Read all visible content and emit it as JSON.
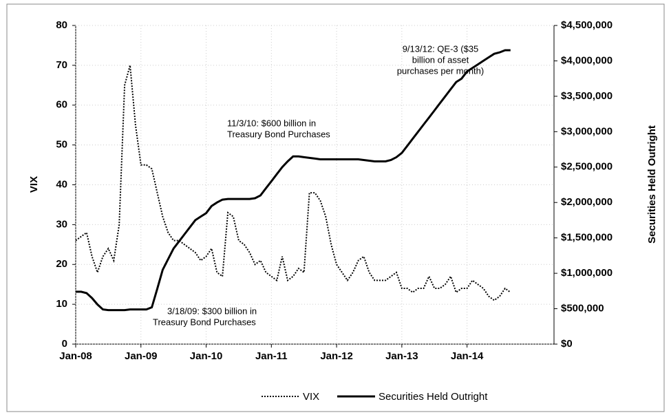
{
  "chart_data": {
    "type": "line",
    "y_label": "VIX",
    "y2_label": "Securities Held Outright",
    "categories": [
      "Jan-08",
      null,
      null,
      null,
      null,
      null,
      null,
      null,
      null,
      null,
      null,
      null,
      "Jan-09",
      null,
      null,
      null,
      null,
      null,
      null,
      null,
      null,
      null,
      null,
      null,
      "Jan-10",
      null,
      null,
      null,
      null,
      null,
      null,
      null,
      null,
      null,
      null,
      null,
      "Jan-11",
      null,
      null,
      null,
      null,
      null,
      null,
      null,
      null,
      null,
      null,
      null,
      "Jan-12",
      null,
      null,
      null,
      null,
      null,
      null,
      null,
      null,
      null,
      null,
      null,
      "Jan-13",
      null,
      null,
      null,
      null,
      null,
      null,
      null,
      null,
      null,
      null,
      null,
      "Jan-14",
      null,
      null,
      null,
      null,
      null,
      null,
      null,
      null,
      null,
      null,
      null,
      null,
      null,
      null,
      null,
      null
    ],
    "series": [
      {
        "name": "VIX",
        "color": "#000000",
        "dash": "dotted",
        "values": [
          26,
          27,
          28,
          22,
          18,
          22,
          24,
          21,
          30,
          65,
          70,
          55,
          45,
          45,
          44,
          38,
          32,
          28,
          26,
          26,
          25,
          24,
          23,
          21,
          22,
          24,
          18,
          17,
          33,
          32,
          26,
          25,
          23,
          20,
          21,
          18,
          17,
          16,
          22,
          16,
          17,
          19,
          18,
          38,
          38,
          36,
          32,
          25,
          20,
          18,
          16,
          18,
          21,
          22,
          18,
          16,
          16,
          16,
          17,
          18,
          14,
          14,
          13,
          14,
          14,
          17,
          14,
          14,
          15,
          17,
          13,
          14,
          14,
          16,
          15,
          14,
          12,
          11,
          12,
          14,
          13,
          null,
          null,
          null,
          null,
          null,
          null,
          null,
          null
        ]
      },
      {
        "name": "Securities Held Outright",
        "color": "#000000",
        "dash": "solid",
        "axis": "y2",
        "values": [
          740000,
          740000,
          720000,
          650000,
          560000,
          490000,
          480000,
          480000,
          480000,
          480000,
          490000,
          490000,
          490000,
          490000,
          520000,
          780000,
          1050000,
          1200000,
          1350000,
          1450000,
          1550000,
          1650000,
          1750000,
          1800000,
          1850000,
          1950000,
          2000000,
          2040000,
          2050000,
          2050000,
          2050000,
          2050000,
          2050000,
          2060000,
          2100000,
          2200000,
          2300000,
          2400000,
          2500000,
          2580000,
          2650000,
          2650000,
          2640000,
          2630000,
          2620000,
          2610000,
          2610000,
          2610000,
          2610000,
          2610000,
          2610000,
          2610000,
          2610000,
          2600000,
          2590000,
          2580000,
          2580000,
          2580000,
          2600000,
          2640000,
          2700000,
          2800000,
          2900000,
          3000000,
          3100000,
          3200000,
          3300000,
          3400000,
          3500000,
          3600000,
          3700000,
          3750000,
          3850000,
          3900000,
          3950000,
          4000000,
          4050000,
          4100000,
          4120000,
          4150000,
          4150000,
          null,
          null,
          null,
          null,
          null,
          null,
          null,
          null
        ]
      }
    ],
    "ylim": [
      0,
      80
    ],
    "yticks": [
      0,
      10,
      20,
      30,
      40,
      50,
      60,
      70,
      80
    ],
    "y2lim": [
      0,
      4500000
    ],
    "y2ticks": [
      {
        "value": 0,
        "label": "$0"
      },
      {
        "value": 500000,
        "label": "$500,000"
      },
      {
        "value": 1000000,
        "label": "$1,000,000"
      },
      {
        "value": 1500000,
        "label": "$1,500,000"
      },
      {
        "value": 2000000,
        "label": "$2,000,000"
      },
      {
        "value": 2500000,
        "label": "$2,500,000"
      },
      {
        "value": 3000000,
        "label": "$3,000,000"
      },
      {
        "value": 3500000,
        "label": "$3,500,000"
      },
      {
        "value": 4000000,
        "label": "$4,000,000"
      },
      {
        "value": 4500000,
        "label": "$4,500,000"
      }
    ],
    "grid": true,
    "legend": "bottom",
    "annotations": [
      [
        "3/18/09: $300 billion in",
        "Treasury Bond Purchases"
      ],
      [
        "11/3/10: $600 billion in",
        "Treasury Bond Purchases"
      ],
      [
        "9/13/12: QE-3 ($35",
        "billion of asset",
        "purchases per month)"
      ]
    ]
  }
}
